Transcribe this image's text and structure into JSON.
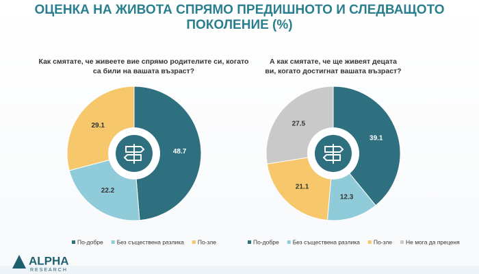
{
  "title": "ОЦЕНКА НА ЖИВОТА СПРЯМО ПРЕДИШНОТО И СЛЕДВАЩОТО ПОКОЛЕНИЕ (%)",
  "logo": {
    "name": "ALPHA",
    "sub": "RESEARCH"
  },
  "chart_data": [
    {
      "type": "pie",
      "title": "Как смятате, че живеете вие спрямо родителите си, когато са били на вашата възраст?",
      "categories": [
        "По-добре",
        "Без съществена разлика",
        "По-зле"
      ],
      "values": [
        48.7,
        22.2,
        29.1
      ],
      "colors": [
        "#2e6f80",
        "#8fcbd8",
        "#f6c76b"
      ]
    },
    {
      "type": "pie",
      "title": "А как смятате, че ще живеят децата ви, когато достигнат вашата възраст?",
      "categories": [
        "По-добре",
        "Без съществена разлика",
        "По-зле",
        "Не мога да преценя"
      ],
      "values": [
        39.1,
        12.3,
        21.1,
        27.5
      ],
      "colors": [
        "#2e6f80",
        "#8fcbd8",
        "#f6c76b",
        "#c9c9c9"
      ]
    }
  ]
}
